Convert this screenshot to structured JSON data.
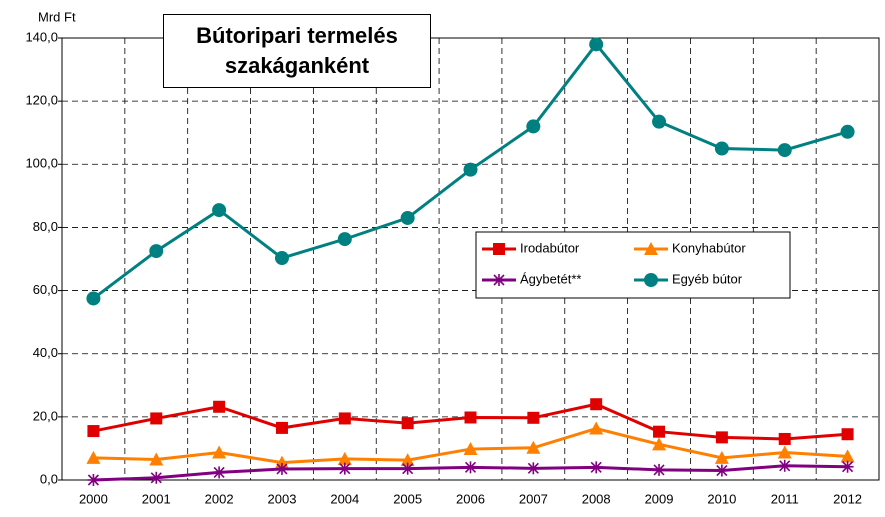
{
  "chart_data": {
    "type": "line",
    "title": "Bútoripari termelés szakáganként",
    "y_label": "Mrd Ft",
    "categories": [
      "2000",
      "2001",
      "2002",
      "2003",
      "2004",
      "2005",
      "2006",
      "2007",
      "2008",
      "2009",
      "2010",
      "2011",
      "2012"
    ],
    "ylim": [
      0,
      140
    ],
    "yticks": [
      {
        "value": 0,
        "label": "0,0"
      },
      {
        "value": 20,
        "label": "20,0"
      },
      {
        "value": 40,
        "label": "40,0"
      },
      {
        "value": 60,
        "label": "60,0"
      },
      {
        "value": 80,
        "label": "80,0"
      },
      {
        "value": 100,
        "label": "100,0"
      },
      {
        "value": 120,
        "label": "120,0"
      },
      {
        "value": 140,
        "label": "140,0"
      }
    ],
    "grid": true,
    "series": [
      {
        "name": "Irodabútor",
        "color": "#e00000",
        "marker": "square",
        "values": [
          15.5,
          19.5,
          23.2,
          16.5,
          19.5,
          18,
          19.8,
          19.7,
          24,
          15.3,
          13.5,
          13,
          14.5
        ]
      },
      {
        "name": "Konyhabútor",
        "color": "#ff8000",
        "marker": "triangle",
        "values": [
          7,
          6.5,
          8.7,
          5.5,
          6.7,
          6.3,
          9.8,
          10.2,
          16.3,
          11.3,
          7,
          8.7,
          7.5
        ]
      },
      {
        "name": "Ágybetét**",
        "color": "#800080",
        "marker": "asterisk",
        "values": [
          0,
          0.7,
          2.4,
          3.5,
          3.6,
          3.6,
          4,
          3.7,
          4,
          3.2,
          3,
          4.5,
          4.2
        ]
      },
      {
        "name": "Egyéb bútor",
        "color": "#008080",
        "marker": "circle",
        "values": [
          57.5,
          72.5,
          85.5,
          70.3,
          76.3,
          83,
          98.3,
          112,
          138,
          113.5,
          105,
          104.5,
          110.3
        ]
      }
    ]
  }
}
